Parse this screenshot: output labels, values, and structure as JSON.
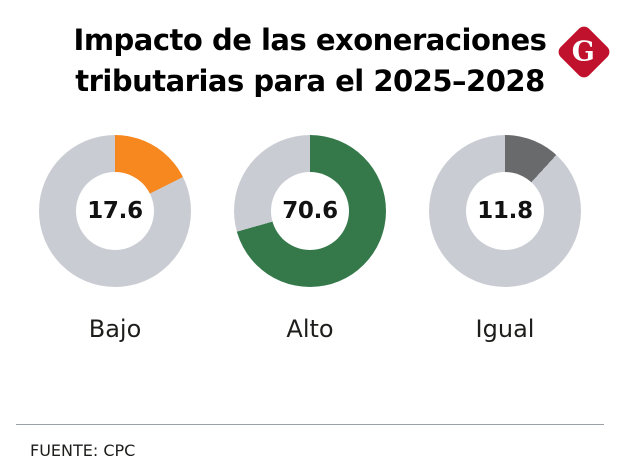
{
  "header": {
    "title_line1": "Impacto de las exoneraciones",
    "title_line2": "tributarias para  el 2025–2028",
    "logo_letter": "G",
    "logo_color": "#c0122d"
  },
  "chart_data": {
    "type": "pie",
    "subtype": "donut",
    "title": "Impacto de las exoneraciones tributarias para el 2025–2028",
    "unit": "percent",
    "track_color": "#c9cdd3",
    "start_angle_deg": 0,
    "charts": [
      {
        "label": "Bajo",
        "value": 17.6,
        "remainder": 82.4,
        "center_label": "17.6",
        "color": "#f6881f"
      },
      {
        "label": "Alto",
        "value": 70.6,
        "remainder": 29.4,
        "center_label": "70.6",
        "color": "#35794b"
      },
      {
        "label": "Igual",
        "value": 11.8,
        "remainder": 88.2,
        "center_label": "11.8",
        "color": "#696a6c"
      }
    ]
  },
  "footer": {
    "source": "FUENTE: CPC"
  }
}
